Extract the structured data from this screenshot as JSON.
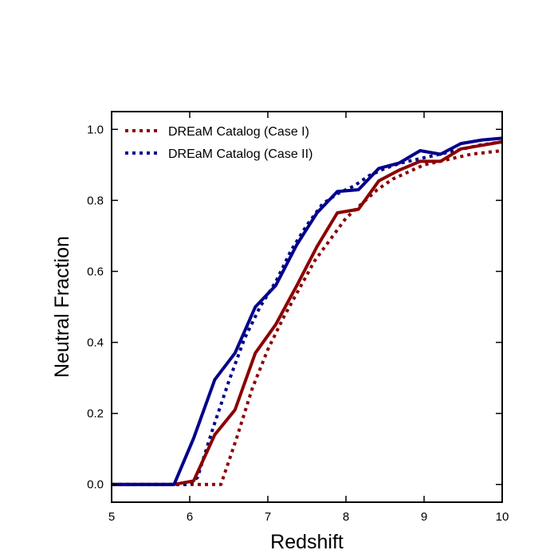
{
  "chart_data": {
    "type": "line",
    "xlabel": "Redshift",
    "ylabel": "Neutral Fraction",
    "xlim": [
      5,
      10
    ],
    "ylim": [
      -0.05,
      1.05
    ],
    "xticks": [
      "5",
      "6",
      "7",
      "8",
      "9",
      "10"
    ],
    "yticks": [
      "0.0",
      "0.2",
      "0.4",
      "0.6",
      "0.8",
      "1.0"
    ],
    "grid": false,
    "legend_position": "top-left",
    "series": [
      {
        "name": "DREaM Catalog (Case I)",
        "color": "#8b0000",
        "style": "dotted",
        "in_legend": true,
        "x": [
          5.0,
          5.5,
          5.8,
          6.1,
          6.4,
          6.6,
          6.8,
          7.0,
          7.2,
          7.4,
          7.6,
          7.8,
          8.0,
          8.2,
          8.4,
          8.6,
          8.8,
          9.0,
          9.2,
          9.4,
          9.6,
          9.8,
          10.0
        ],
        "y": [
          0.0,
          0.0,
          0.0,
          0.0,
          0.0,
          0.13,
          0.27,
          0.38,
          0.47,
          0.55,
          0.63,
          0.69,
          0.75,
          0.79,
          0.83,
          0.86,
          0.88,
          0.9,
          0.91,
          0.92,
          0.93,
          0.935,
          0.94
        ]
      },
      {
        "name": "DREaM Catalog (Case II)",
        "color": "#00008b",
        "style": "dotted",
        "in_legend": true,
        "x": [
          5.0,
          5.5,
          5.8,
          6.0,
          6.1,
          6.3,
          6.5,
          6.7,
          6.9,
          7.1,
          7.3,
          7.5,
          7.7,
          7.9,
          8.1,
          8.3,
          8.5,
          8.7,
          8.9,
          9.1,
          9.3,
          9.5,
          9.7,
          10.0
        ],
        "y": [
          0.0,
          0.0,
          0.0,
          0.0,
          0.02,
          0.16,
          0.29,
          0.41,
          0.5,
          0.57,
          0.66,
          0.73,
          0.79,
          0.82,
          0.84,
          0.87,
          0.89,
          0.905,
          0.915,
          0.925,
          0.935,
          0.945,
          0.955,
          0.965
        ]
      },
      {
        "name": "",
        "color": "#8b0000",
        "style": "solid",
        "in_legend": false,
        "x": [
          5.0,
          5.5,
          5.8,
          6.05,
          6.32,
          6.58,
          6.84,
          7.1,
          7.37,
          7.63,
          7.89,
          8.16,
          8.42,
          8.68,
          8.95,
          9.21,
          9.47,
          9.74,
          10.0
        ],
        "y": [
          0.0,
          0.0,
          0.0,
          0.01,
          0.14,
          0.21,
          0.37,
          0.45,
          0.56,
          0.67,
          0.765,
          0.775,
          0.855,
          0.885,
          0.91,
          0.91,
          0.945,
          0.955,
          0.965
        ]
      },
      {
        "name": "",
        "color": "#00008b",
        "style": "solid",
        "in_legend": false,
        "x": [
          5.0,
          5.5,
          5.8,
          6.05,
          6.32,
          6.58,
          6.84,
          7.1,
          7.37,
          7.63,
          7.89,
          8.16,
          8.42,
          8.68,
          8.95,
          9.21,
          9.47,
          9.74,
          10.0
        ],
        "y": [
          0.0,
          0.0,
          0.0,
          0.13,
          0.295,
          0.37,
          0.5,
          0.56,
          0.675,
          0.765,
          0.825,
          0.83,
          0.89,
          0.905,
          0.94,
          0.93,
          0.96,
          0.97,
          0.975
        ]
      }
    ]
  }
}
